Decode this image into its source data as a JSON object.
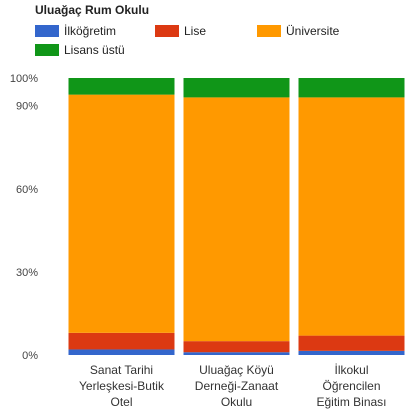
{
  "chart_data": {
    "type": "bar",
    "stacked": true,
    "normalized": true,
    "title": "Uluağaç Rum Okulu",
    "categories": [
      [
        "Sanat Tarihi",
        "Yerleşkesi-Butik",
        "Otel"
      ],
      [
        "Uluağaç Köyü",
        "Derneği-Zanaat",
        "Okulu"
      ],
      [
        "İlkokul",
        "Öğrencilen",
        "Eğitim Binası"
      ]
    ],
    "series": [
      {
        "name": "İlköğretim",
        "color": "#3366cc",
        "values": [
          2,
          1,
          1.5
        ]
      },
      {
        "name": "Lise",
        "color": "#dc3912",
        "values": [
          6,
          4,
          5.5
        ]
      },
      {
        "name": "Üniversite",
        "color": "#ff9900",
        "values": [
          86,
          88,
          86
        ]
      },
      {
        "name": "Lisans üstü",
        "color": "#109618",
        "values": [
          6,
          7,
          7
        ]
      }
    ],
    "y_ticks": [
      "0%",
      "30%",
      "60%",
      "90%",
      "100%"
    ],
    "y_tick_values": [
      0,
      30,
      60,
      90,
      100
    ],
    "ylim": [
      0,
      100
    ],
    "legend_position": "top",
    "grid": false
  }
}
